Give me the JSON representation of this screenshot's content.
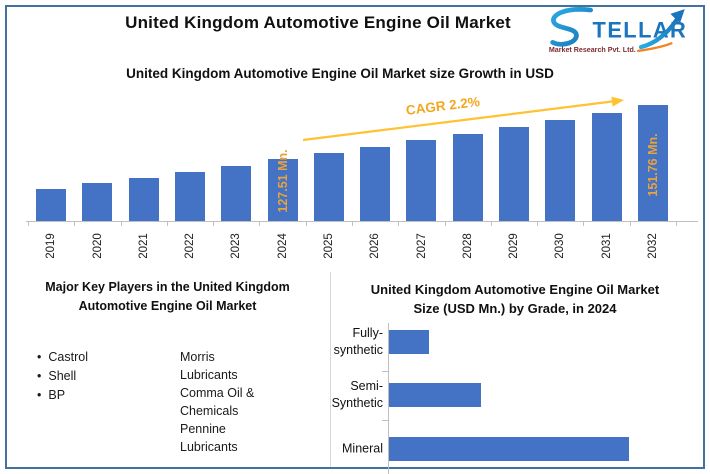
{
  "page": {
    "title": "United Kingdom Automotive Engine Oil Market"
  },
  "logo": {
    "brand": "STELLAR",
    "brand_letters": "TELLAR",
    "tagline": "Market Research Pvt. Ltd."
  },
  "colors": {
    "bar_blue": "#4472C4",
    "gold_label": "#E8A33C",
    "gold_arrow": "#FFC233",
    "gold_text": "#F2A71D",
    "border_blue": "#41719C",
    "axis_gray": "#BFBFBF",
    "logo_blue": "#1B75BC",
    "logo_teal": "#29ABE2",
    "logo_orange": "#F58220",
    "logo_tagline_red": "#7E2D2F"
  },
  "chart_data": [
    {
      "id": "growth",
      "type": "bar",
      "title": "United Kingdom Automotive Engine Oil Market size Growth in USD",
      "unit": "USD Mn.",
      "categories": [
        "2019",
        "2020",
        "2021",
        "2022",
        "2023",
        "2024",
        "2025",
        "2026",
        "2027",
        "2028",
        "2029",
        "2030",
        "2031",
        "2032"
      ],
      "values": [
        114.36,
        116.88,
        119.45,
        122.08,
        124.77,
        127.51,
        130.32,
        133.18,
        136.11,
        139.11,
        142.17,
        145.29,
        148.49,
        151.76
      ],
      "labeled_points": [
        {
          "category": "2024",
          "label": "127.51 Mn."
        },
        {
          "category": "2032",
          "label": "151.76 Mn."
        }
      ],
      "annotation": "CAGR 2.2%",
      "ylim_visual": [
        100,
        155
      ],
      "gridlines": false,
      "legend": "none"
    },
    {
      "id": "by_grade",
      "type": "bar_horizontal",
      "title": "United Kingdom Automotive Engine Oil Market Size (USD Mn.) by Grade, in 2024",
      "categories": [
        "Fully-synthetic",
        "Semi-Synthetic",
        "Mineral"
      ],
      "category_display_lines": [
        [
          "Fully-",
          "synthetic"
        ],
        [
          "Semi-",
          "Synthetic"
        ],
        [
          "Mineral"
        ]
      ],
      "values": [
        13.7,
        31.5,
        82.3
      ],
      "xlim_visual": [
        0,
        85
      ],
      "gridlines": false,
      "legend": "none"
    }
  ],
  "key_players": {
    "title": "Major Key Players in the United Kingdom Automotive Engine Oil Market",
    "bulleted_items": [
      "Castrol",
      "Shell",
      "BP"
    ],
    "column2_lines": [
      "Morris",
      "Lubricants",
      "Comma Oil &",
      "Chemicals",
      "Pennine",
      "Lubricants"
    ]
  }
}
